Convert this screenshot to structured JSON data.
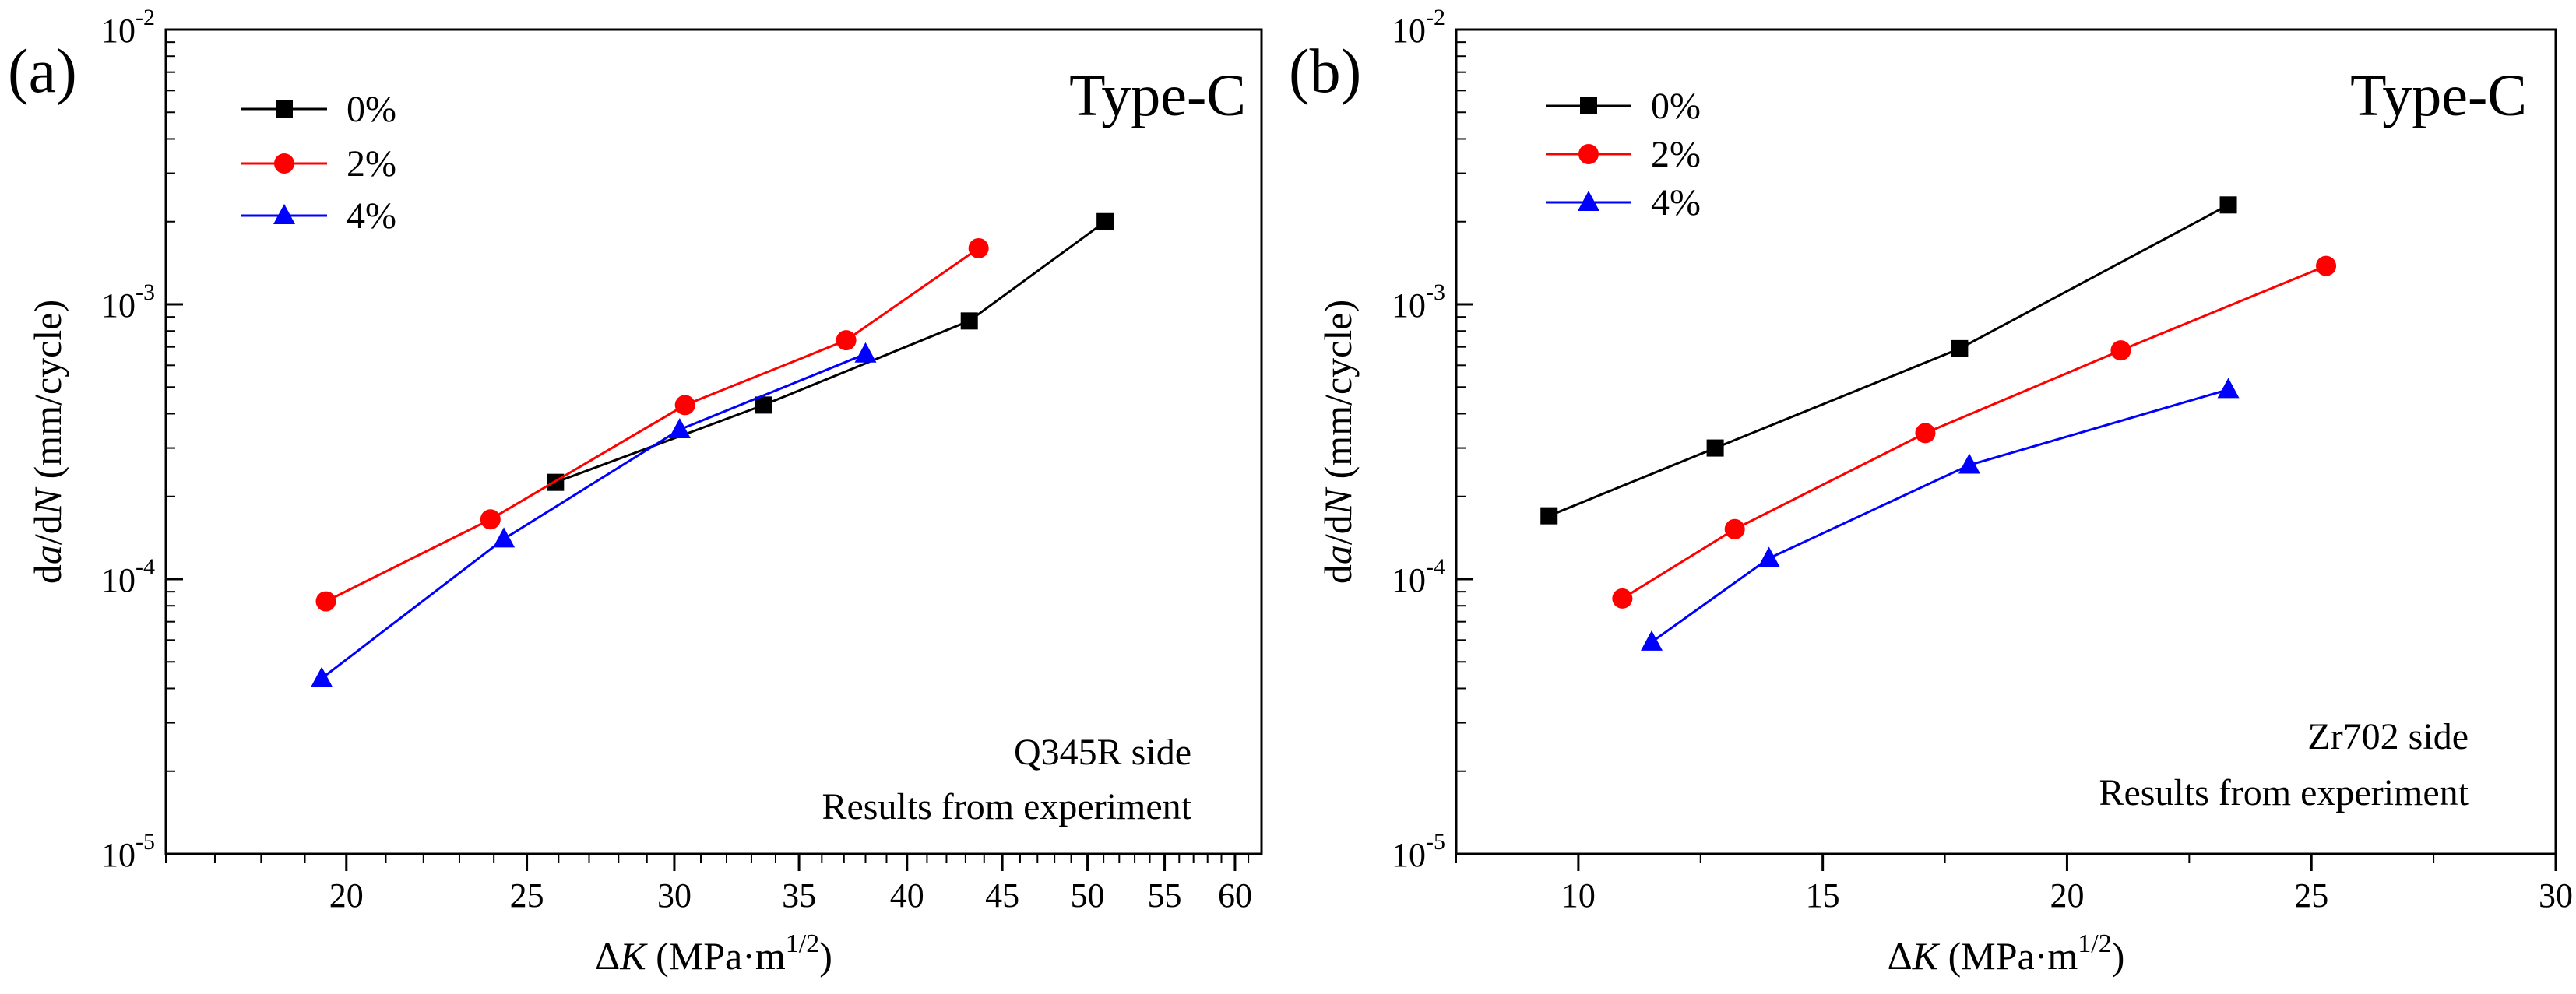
{
  "chart_data": [
    {
      "type": "line",
      "panel_label": "(a)",
      "type_label": "Type-C",
      "xlabel": "ΔK (MPa·m^(1/2))",
      "xlabel_parts": {
        "delta": "Δ",
        "var": "K",
        "unit": " (MPa·m",
        "exp": "1/2",
        "close": ")"
      },
      "ylabel": "da/dN (mm/cycle)",
      "ylabel_parts": {
        "a": "d",
        "b": "a",
        "c": "/d",
        "d": "N",
        "e": " (mm/cycle)"
      },
      "x_scale": "log",
      "y_scale": "log",
      "xlim": [
        16,
        62
      ],
      "ylim": [
        1e-05,
        0.01
      ],
      "x_ticks": [
        20,
        25,
        30,
        35,
        40,
        45,
        50,
        55,
        60
      ],
      "x_tick_labels": [
        "20",
        "25",
        "30",
        "35",
        "40",
        "45",
        "50",
        "55",
        "60"
      ],
      "y_ticks": [
        1e-05,
        0.0001,
        0.001,
        0.01
      ],
      "y_tick_labels": [
        {
          "base": "10",
          "exp": "-5"
        },
        {
          "base": "10",
          "exp": "-4"
        },
        {
          "base": "10",
          "exp": "-3"
        },
        {
          "base": "10",
          "exp": "-2"
        }
      ],
      "legend_position": "top-left",
      "notes": [
        "Q345R side",
        "Results from experiment"
      ],
      "series": [
        {
          "name": "0%",
          "color": "#000000",
          "marker": "square",
          "x": [
            25.9,
            33.5,
            43.2,
            51.1
          ],
          "y": [
            0.000225,
            0.00043,
            0.00087,
            0.002
          ]
        },
        {
          "name": "2%",
          "color": "#ff0000",
          "marker": "circle",
          "x": [
            19.5,
            23.9,
            30.4,
            37.1,
            43.7
          ],
          "y": [
            8.3e-05,
            0.000165,
            0.00043,
            0.00074,
            0.0016
          ]
        },
        {
          "name": "4%",
          "color": "#0000ff",
          "marker": "triangle",
          "x": [
            19.4,
            24.3,
            30.2,
            38.0
          ],
          "y": [
            4.35e-05,
            0.00014,
            0.00035,
            0.00066
          ]
        }
      ]
    },
    {
      "type": "line",
      "panel_label": "(b)",
      "type_label": "Type-C",
      "xlabel": "ΔK (MPa·m^(1/2))",
      "xlabel_parts": {
        "delta": "Δ",
        "var": "K",
        "unit": " (MPa·m",
        "exp": "1/2",
        "close": ")"
      },
      "ylabel": "da/dN (mm/cycle)",
      "ylabel_parts": {
        "a": "d",
        "b": "a",
        "c": "/d",
        "d": "N",
        "e": " (mm/cycle)"
      },
      "x_scale": "linear",
      "y_scale": "log",
      "xlim": [
        7.5,
        30
      ],
      "ylim": [
        1e-05,
        0.01
      ],
      "x_ticks": [
        10,
        15,
        20,
        25,
        30
      ],
      "x_tick_labels": [
        "10",
        "15",
        "20",
        "25",
        "30"
      ],
      "x_minor_ticks": [
        7.5,
        12.5,
        17.5,
        22.5,
        27.5
      ],
      "y_ticks": [
        1e-05,
        0.0001,
        0.001,
        0.01
      ],
      "y_tick_labels": [
        {
          "base": "10",
          "exp": "-5"
        },
        {
          "base": "10",
          "exp": "-4"
        },
        {
          "base": "10",
          "exp": "-3"
        },
        {
          "base": "10",
          "exp": "-2"
        }
      ],
      "legend_position": "top-left",
      "notes": [
        "Zr702 side",
        "Results from experiment"
      ],
      "series": [
        {
          "name": "0%",
          "color": "#000000",
          "marker": "square",
          "x": [
            9.4,
            12.8,
            17.8,
            23.3
          ],
          "y": [
            0.00017,
            0.0003,
            0.00069,
            0.0023
          ]
        },
        {
          "name": "2%",
          "color": "#ff0000",
          "marker": "circle",
          "x": [
            10.9,
            13.2,
            17.1,
            21.1,
            25.3
          ],
          "y": [
            8.5e-05,
            0.000152,
            0.00034,
            0.00068,
            0.00138
          ]
        },
        {
          "name": "4%",
          "color": "#0000ff",
          "marker": "triangle",
          "x": [
            11.5,
            13.9,
            18.0,
            23.3
          ],
          "y": [
            5.9e-05,
            0.000119,
            0.00026,
            0.00049
          ]
        }
      ]
    }
  ]
}
